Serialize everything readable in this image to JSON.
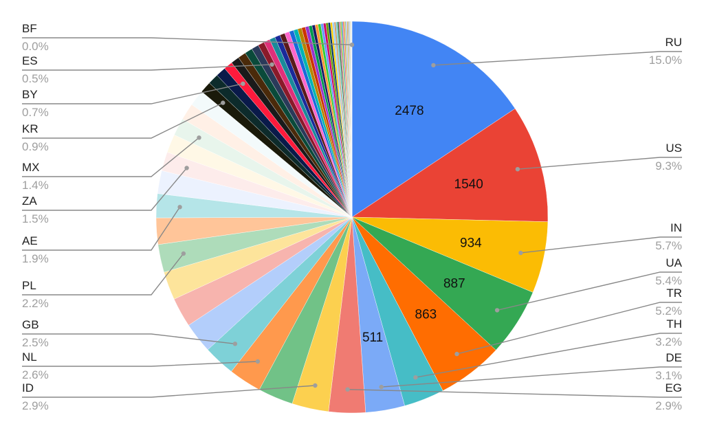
{
  "chart_data": {
    "type": "pie",
    "start_angle": "12 o'clock, clockwise",
    "slices": [
      {
        "label": "RU",
        "value": 2478,
        "percent_label": "15.0%",
        "value_label": "2478",
        "color": "#4285f4",
        "callout": true
      },
      {
        "label": "US",
        "value": 1540,
        "percent_label": "9.3%",
        "value_label": "1540",
        "color": "#ea4335",
        "callout": true
      },
      {
        "label": "IN",
        "value": 934,
        "percent_label": "5.7%",
        "value_label": "934",
        "color": "#fbbc04",
        "callout": true
      },
      {
        "label": "UA",
        "value": 887,
        "percent_label": "5.4%",
        "value_label": "887",
        "color": "#34a853",
        "callout": true
      },
      {
        "label": "TR",
        "value": 863,
        "percent_label": "5.2%",
        "value_label": "863",
        "color": "#ff6d01",
        "callout": true
      },
      {
        "label": "TH",
        "value": 529,
        "percent_label": "3.2%",
        "value_label": "",
        "color": "#46bdc6",
        "callout": true
      },
      {
        "label": "DE",
        "value": 511,
        "percent_label": "3.1%",
        "value_label": "511",
        "color": "#7baaf7",
        "callout": true
      },
      {
        "label": "EG",
        "value": 479,
        "percent_label": "2.9%",
        "value_label": "",
        "color": "#f07b72",
        "callout": true
      },
      {
        "label": "ID",
        "value": 479,
        "percent_label": "2.9%",
        "value_label": "",
        "color": "#fcd04f",
        "callout": true
      },
      {
        "label": "",
        "value": 460,
        "percent_label": "",
        "value_label": "",
        "color": "#71c287",
        "callout": false
      },
      {
        "label": "NL",
        "value": 430,
        "percent_label": "2.6%",
        "value_label": "",
        "color": "#ff994d",
        "callout": true
      },
      {
        "label": "GB",
        "value": 413,
        "percent_label": "2.5%",
        "value_label": "",
        "color": "#7ed1d7",
        "callout": true
      },
      {
        "label": "",
        "value": 400,
        "percent_label": "",
        "value_label": "",
        "color": "#b3cefb",
        "callout": false
      },
      {
        "label": "",
        "value": 385,
        "percent_label": "",
        "value_label": "",
        "color": "#f7b4ae",
        "callout": false
      },
      {
        "label": "",
        "value": 370,
        "percent_label": "",
        "value_label": "",
        "color": "#fde49b",
        "callout": false
      },
      {
        "label": "PL",
        "value": 364,
        "percent_label": "2.2%",
        "value_label": "",
        "color": "#aedcba",
        "callout": true
      },
      {
        "label": "",
        "value": 345,
        "percent_label": "",
        "value_label": "",
        "color": "#ffc599",
        "callout": false
      },
      {
        "label": "AE",
        "value": 314,
        "percent_label": "1.9%",
        "value_label": "",
        "color": "#b5e5e8",
        "callout": true
      },
      {
        "label": "",
        "value": 300,
        "percent_label": "",
        "value_label": "",
        "color": "#ecf2fe",
        "callout": false
      },
      {
        "label": "ZA",
        "value": 248,
        "percent_label": "1.5%",
        "value_label": "",
        "color": "#fdeceb",
        "callout": true
      },
      {
        "label": "",
        "value": 240,
        "percent_label": "",
        "value_label": "",
        "color": "#fff8e6",
        "callout": false
      },
      {
        "label": "MX",
        "value": 231,
        "percent_label": "1.4%",
        "value_label": "",
        "color": "#e8f5ec",
        "callout": true
      },
      {
        "label": "",
        "value": 220,
        "percent_label": "",
        "value_label": "",
        "color": "#fff0e6",
        "callout": false
      },
      {
        "label": "",
        "value": 210,
        "percent_label": "",
        "value_label": "",
        "color": "#f3fafb",
        "callout": false
      },
      {
        "label": "KR",
        "value": 149,
        "percent_label": "0.9%",
        "value_label": "",
        "color": "#1a1a0a",
        "callout": true
      },
      {
        "label": "",
        "value": 140,
        "percent_label": "",
        "value_label": "",
        "color": "#0d2b2b",
        "callout": false
      },
      {
        "label": "",
        "value": 132,
        "percent_label": "",
        "value_label": "",
        "color": "#0a1a4a",
        "callout": false
      },
      {
        "label": "BY",
        "value": 116,
        "percent_label": "0.7%",
        "value_label": "",
        "color": "#ff1a3c",
        "callout": true
      },
      {
        "label": "",
        "value": 110,
        "percent_label": "",
        "value_label": "",
        "color": "#1a1a1a",
        "callout": false
      },
      {
        "label": "",
        "value": 105,
        "percent_label": "",
        "value_label": "",
        "color": "#4a2a0a",
        "callout": false
      },
      {
        "label": "",
        "value": 100,
        "percent_label": "",
        "value_label": "",
        "color": "#0a4a3a",
        "callout": false
      },
      {
        "label": "",
        "value": 95,
        "percent_label": "",
        "value_label": "",
        "color": "#2a3a5a",
        "callout": false
      },
      {
        "label": "ES",
        "value": 83,
        "percent_label": "0.5%",
        "value_label": "",
        "color": "#8a1a2a",
        "callout": true
      },
      {
        "label": "",
        "value": 80,
        "percent_label": "",
        "value_label": "",
        "color": "#e0307a",
        "callout": false
      },
      {
        "label": "",
        "value": 75,
        "percent_label": "",
        "value_label": "",
        "color": "#1a8a9a",
        "callout": false
      },
      {
        "label": "",
        "value": 70,
        "percent_label": "",
        "value_label": "",
        "color": "#1a2a9a",
        "callout": false
      },
      {
        "label": "",
        "value": 66,
        "percent_label": "",
        "value_label": "",
        "color": "#5a1a1a",
        "callout": false
      },
      {
        "label": "",
        "value": 62,
        "percent_label": "",
        "value_label": "",
        "color": "#ff66cc",
        "callout": false
      },
      {
        "label": "",
        "value": 58,
        "percent_label": "",
        "value_label": "",
        "color": "#1a6ad9",
        "callout": false
      },
      {
        "label": "",
        "value": 55,
        "percent_label": "",
        "value_label": "",
        "color": "#00b3b3",
        "callout": false
      },
      {
        "label": "",
        "value": 52,
        "percent_label": "",
        "value_label": "",
        "color": "#b38600",
        "callout": false
      },
      {
        "label": "",
        "value": 49,
        "percent_label": "",
        "value_label": "",
        "color": "#cc3300",
        "callout": false
      },
      {
        "label": "",
        "value": 46,
        "percent_label": "",
        "value_label": "",
        "color": "#9933cc",
        "callout": false
      },
      {
        "label": "",
        "value": 43,
        "percent_label": "",
        "value_label": "",
        "color": "#00994d",
        "callout": false
      },
      {
        "label": "",
        "value": 40,
        "percent_label": "",
        "value_label": "",
        "color": "#1a1a66",
        "callout": false
      },
      {
        "label": "",
        "value": 38,
        "percent_label": "",
        "value_label": "",
        "color": "#ff9933",
        "callout": false
      },
      {
        "label": "",
        "value": 36,
        "percent_label": "",
        "value_label": "",
        "color": "#33cc33",
        "callout": false
      },
      {
        "label": "",
        "value": 34,
        "percent_label": "",
        "value_label": "",
        "color": "#6699ff",
        "callout": false
      },
      {
        "label": "",
        "value": 32,
        "percent_label": "",
        "value_label": "",
        "color": "#cc0066",
        "callout": false
      },
      {
        "label": "",
        "value": 30,
        "percent_label": "",
        "value_label": "",
        "color": "#669900",
        "callout": false
      },
      {
        "label": "",
        "value": 28,
        "percent_label": "",
        "value_label": "",
        "color": "#003366",
        "callout": false
      },
      {
        "label": "",
        "value": 26,
        "percent_label": "",
        "value_label": "",
        "color": "#ffcc00",
        "callout": false
      },
      {
        "label": "",
        "value": 24,
        "percent_label": "",
        "value_label": "",
        "color": "#99ccff",
        "callout": false
      },
      {
        "label": "",
        "value": 22,
        "percent_label": "",
        "value_label": "",
        "color": "#cc9966",
        "callout": false
      },
      {
        "label": "",
        "value": 20,
        "percent_label": "",
        "value_label": "",
        "color": "#66cccc",
        "callout": false
      },
      {
        "label": "",
        "value": 19,
        "percent_label": "",
        "value_label": "",
        "color": "#336633",
        "callout": false
      },
      {
        "label": "",
        "value": 18,
        "percent_label": "",
        "value_label": "",
        "color": "#cc6699",
        "callout": false
      },
      {
        "label": "",
        "value": 17,
        "percent_label": "",
        "value_label": "",
        "color": "#99cc33",
        "callout": false
      },
      {
        "label": "",
        "value": 16,
        "percent_label": "",
        "value_label": "",
        "color": "#3399cc",
        "callout": false
      },
      {
        "label": "",
        "value": 15,
        "percent_label": "",
        "value_label": "",
        "color": "#ff6666",
        "callout": false
      },
      {
        "label": "",
        "value": 14,
        "percent_label": "",
        "value_label": "",
        "color": "#ccaa33",
        "callout": false
      },
      {
        "label": "",
        "value": 13,
        "percent_label": "",
        "value_label": "",
        "color": "#8fbc8f",
        "callout": false
      },
      {
        "label": "",
        "value": 12,
        "percent_label": "",
        "value_label": "",
        "color": "#a0a0ff",
        "callout": false
      },
      {
        "label": "",
        "value": 11,
        "percent_label": "",
        "value_label": "",
        "color": "#d4a017",
        "callout": false
      },
      {
        "label": "",
        "value": 10,
        "percent_label": "",
        "value_label": "",
        "color": "#88aa55",
        "callout": false
      },
      {
        "label": "",
        "value": 9,
        "percent_label": "",
        "value_label": "",
        "color": "#bb88cc",
        "callout": false
      },
      {
        "label": "",
        "value": 8,
        "percent_label": "",
        "value_label": "",
        "color": "#55aaaa",
        "callout": false
      },
      {
        "label": "",
        "value": 7,
        "percent_label": "",
        "value_label": "",
        "color": "#ddbb77",
        "callout": false
      },
      {
        "label": "",
        "value": 6,
        "percent_label": "",
        "value_label": "",
        "color": "#99bb99",
        "callout": false
      },
      {
        "label": "",
        "value": 5,
        "percent_label": "",
        "value_label": "",
        "color": "#bbbbdd",
        "callout": false
      },
      {
        "label": "",
        "value": 4,
        "percent_label": "",
        "value_label": "",
        "color": "#cccc88",
        "callout": false
      },
      {
        "label": "",
        "value": 3,
        "percent_label": "",
        "value_label": "",
        "color": "#aaddcc",
        "callout": false
      },
      {
        "label": "BF",
        "value": 2,
        "percent_label": "0.0%",
        "value_label": "",
        "color": "#dddddd",
        "callout": true
      }
    ]
  }
}
